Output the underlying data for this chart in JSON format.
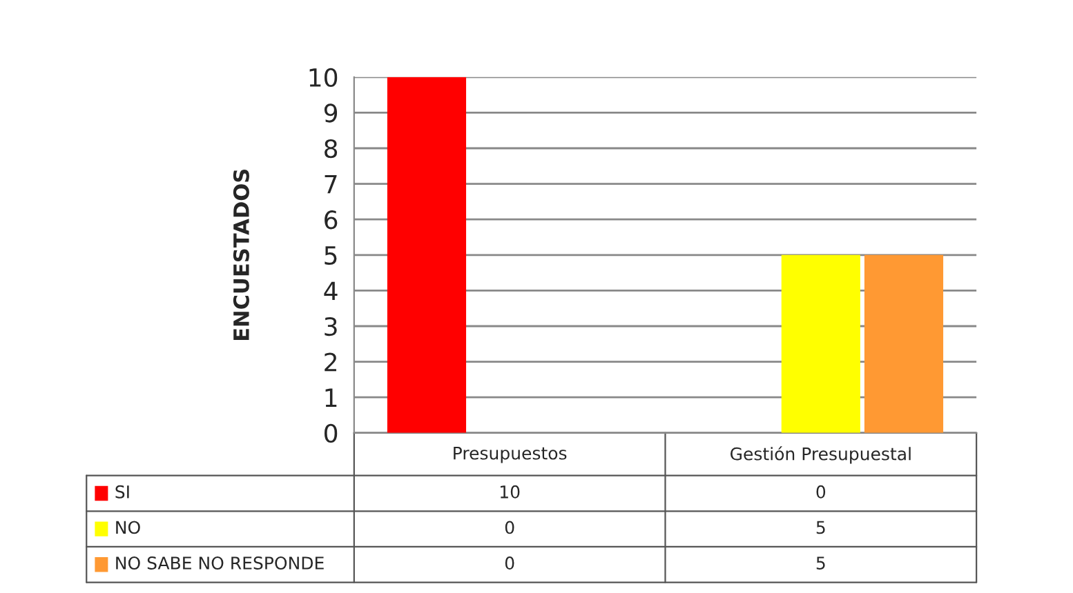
{
  "chart_data": {
    "type": "bar",
    "categories": [
      "Presupuestos",
      "Gestión Presupuestal"
    ],
    "series": [
      {
        "name": "SI",
        "color": "#ff0000",
        "values": [
          10,
          0
        ]
      },
      {
        "name": "NO",
        "color": "#ffff00",
        "values": [
          0,
          5
        ]
      },
      {
        "name": "NO SABE NO RESPONDE",
        "color": "#ff9933",
        "values": [
          0,
          5
        ]
      }
    ],
    "ylabel": "ENCUESTADOS",
    "ylim": [
      0,
      10
    ],
    "yticks": [
      0,
      1,
      2,
      3,
      4,
      5,
      6,
      7,
      8,
      9,
      10
    ],
    "grid": "y",
    "legend": "bottom left",
    "data_labels": true
  }
}
